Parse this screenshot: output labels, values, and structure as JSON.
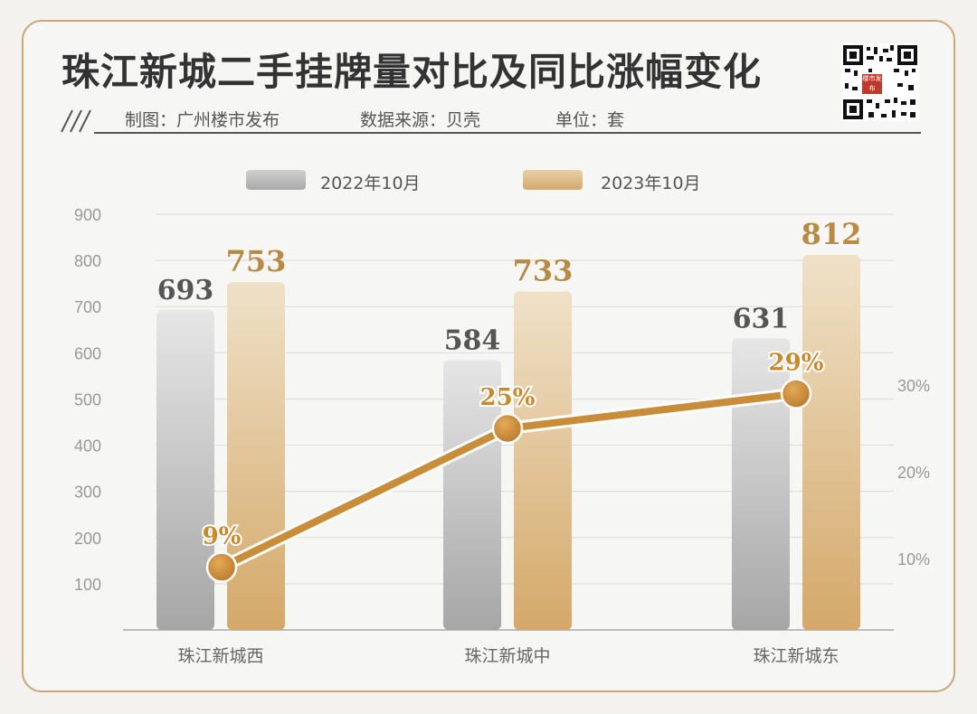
{
  "header": {
    "title": "珠江新城二手挂牌量对比及同比涨幅变化",
    "producer": "制图：广州楼市发布",
    "source": "数据来源：贝壳",
    "unit": "单位：套",
    "qr_badge": "楼市发布"
  },
  "colors": {
    "frame": "#c9a77a",
    "series_2022": "#b5b5b5",
    "series_2023": "#d9b27e",
    "line": "#c98d3a",
    "pct_label": "#c98a2e",
    "value_2023": "#b88a44",
    "value_2022": "#555555"
  },
  "chart_data": {
    "type": "bar",
    "categories": [
      "珠江新城西",
      "珠江新城中",
      "珠江新城东"
    ],
    "series": [
      {
        "name": "2022年10月",
        "values": [
          693,
          584,
          631
        ],
        "labels": [
          "693",
          "584",
          "631"
        ]
      },
      {
        "name": "2023年10月",
        "values": [
          753,
          733,
          812
        ],
        "labels": [
          "753",
          "733",
          "812"
        ]
      }
    ],
    "line_series": {
      "values": [
        9,
        25,
        29
      ],
      "labels": [
        "9%",
        "25%",
        "29%"
      ],
      "axis": "right"
    },
    "ylim": [
      0,
      900
    ],
    "yticks": [
      "100",
      "200",
      "300",
      "400",
      "500",
      "600",
      "700",
      "800",
      "900"
    ],
    "ytick_values": [
      100,
      200,
      300,
      400,
      500,
      600,
      700,
      800,
      900
    ],
    "y2ticks": [
      "10%",
      "20%",
      "30%"
    ],
    "y2tick_values": [
      10,
      20,
      30
    ],
    "grid": true,
    "legend_position": "top"
  }
}
